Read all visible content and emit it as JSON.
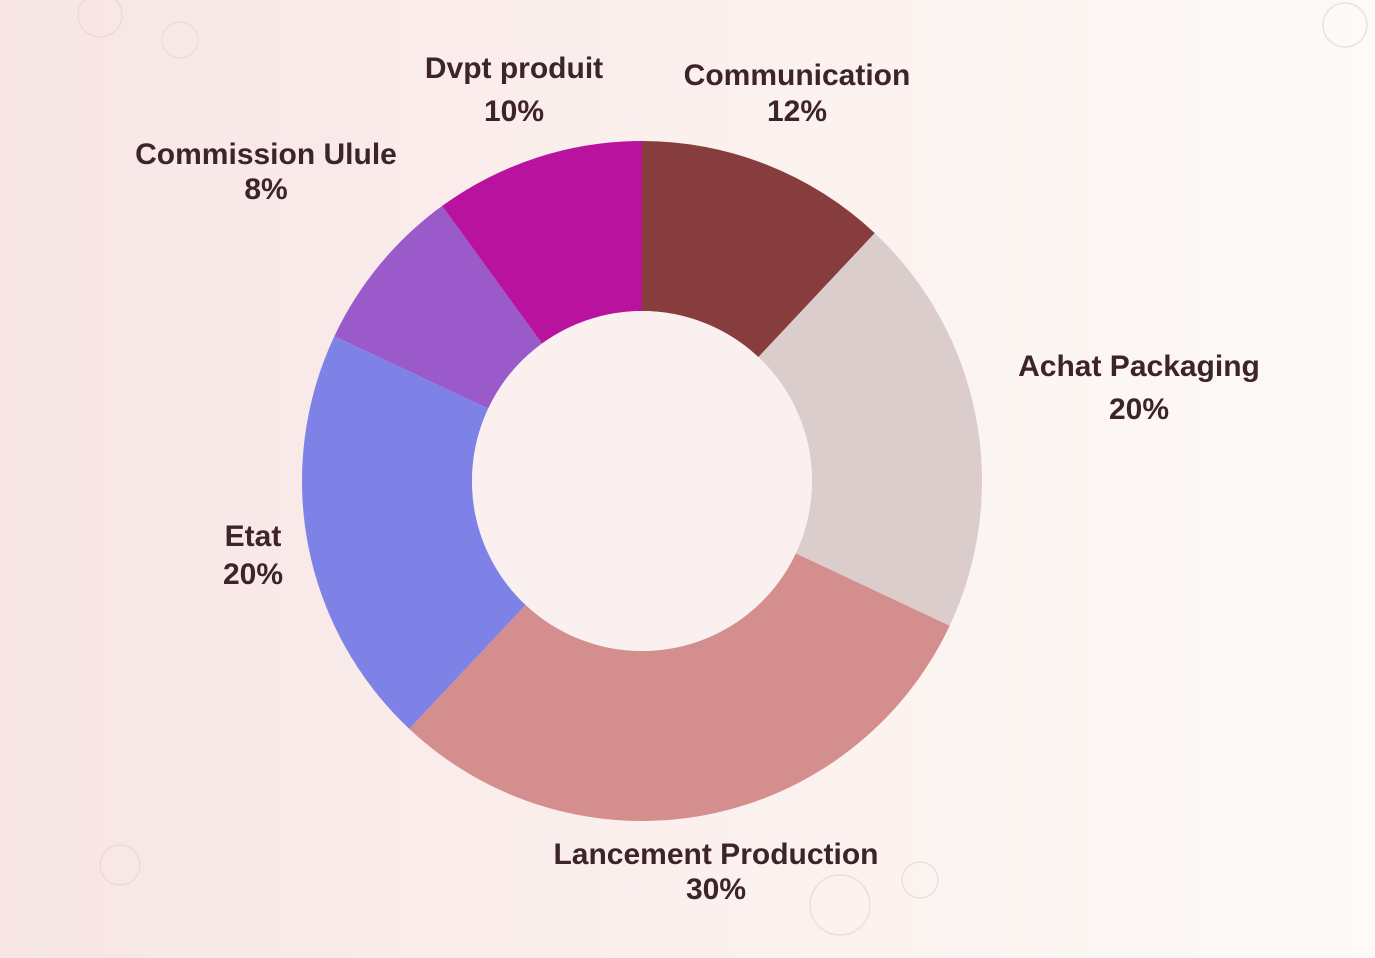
{
  "chart_data": {
    "type": "donut",
    "categories": [
      "Communication",
      "Achat Packaging",
      "Lancement Production",
      "Etat",
      "Commission Ulule",
      "Dvpt produit"
    ],
    "values": [
      12,
      20,
      30,
      20,
      8,
      10
    ],
    "value_labels": [
      "12%",
      "20%",
      "30%",
      "20%",
      "8%",
      "10%"
    ],
    "colors": [
      "#873d3d",
      "#dccdcd",
      "#d48e8e",
      "#7e82e6",
      "#9a5ac9",
      "#b8129e"
    ]
  }
}
